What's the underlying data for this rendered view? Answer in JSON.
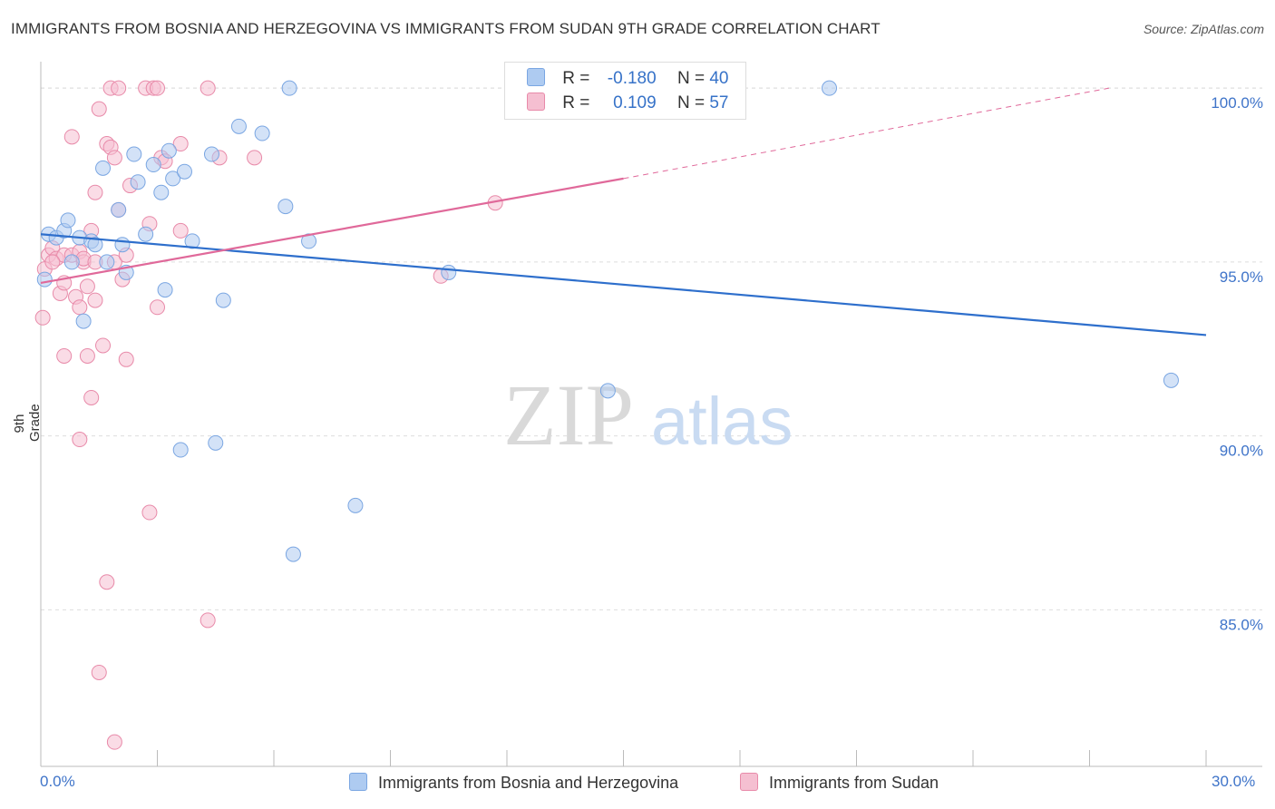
{
  "title": "IMMIGRANTS FROM BOSNIA AND HERZEGOVINA VS IMMIGRANTS FROM SUDAN 9TH GRADE CORRELATION CHART",
  "source": "Source: ZipAtlas.com",
  "watermark": {
    "zip": "ZIP",
    "atlas": "atlas"
  },
  "colors": {
    "blue_fill": "#aecbf1",
    "blue_stroke": "#7aa6e2",
    "blue_line": "#2e6fcc",
    "pink_fill": "#f5bfd1",
    "pink_stroke": "#e88aa9",
    "pink_line": "#e0699a",
    "axis_label": "#3f74c9",
    "grid": "#dddddd"
  },
  "legend": {
    "r_label": "R =",
    "n_label": "N =",
    "series1": {
      "r": "-0.180",
      "n": "40"
    },
    "series2": {
      "r": "0.109",
      "n": "57"
    }
  },
  "chart_data": {
    "type": "scatter",
    "title": "IMMIGRANTS FROM BOSNIA AND HERZEGOVINA VS IMMIGRANTS FROM SUDAN 9TH GRADE CORRELATION CHART",
    "xlabel": "",
    "ylabel": "9th Grade",
    "xlim": [
      0,
      30
    ],
    "ylim": [
      80.5,
      100.5
    ],
    "x_tick_labels": [
      "0.0%",
      "30.0%"
    ],
    "y_ticks": [
      85,
      90,
      95,
      100
    ],
    "y_tick_labels": [
      "85.0%",
      "90.0%",
      "95.0%",
      "100.0%"
    ],
    "series": [
      {
        "name": "Immigrants from Bosnia and Herzegovina",
        "color": "blue",
        "trend": {
          "x0": 0.0,
          "y0": 95.8,
          "x1": 30.0,
          "y1": 92.9,
          "dashed_from": null
        },
        "points": [
          [
            0.2,
            95.8
          ],
          [
            0.4,
            95.7
          ],
          [
            0.6,
            95.9
          ],
          [
            0.7,
            96.2
          ],
          [
            0.8,
            95.0
          ],
          [
            1.0,
            95.7
          ],
          [
            1.1,
            93.3
          ],
          [
            1.3,
            95.6
          ],
          [
            1.4,
            95.5
          ],
          [
            1.6,
            97.7
          ],
          [
            1.7,
            95.0
          ],
          [
            2.0,
            96.5
          ],
          [
            2.1,
            95.5
          ],
          [
            2.2,
            94.7
          ],
          [
            2.4,
            98.1
          ],
          [
            2.5,
            97.3
          ],
          [
            2.7,
            95.8
          ],
          [
            2.9,
            97.8
          ],
          [
            3.1,
            97.0
          ],
          [
            3.2,
            94.2
          ],
          [
            3.3,
            98.2
          ],
          [
            3.4,
            97.4
          ],
          [
            3.6,
            89.6
          ],
          [
            3.7,
            97.6
          ],
          [
            3.9,
            95.6
          ],
          [
            4.4,
            98.1
          ],
          [
            4.5,
            89.8
          ],
          [
            4.7,
            93.9
          ],
          [
            5.1,
            98.9
          ],
          [
            5.7,
            98.7
          ],
          [
            6.3,
            96.6
          ],
          [
            6.4,
            100.0
          ],
          [
            6.5,
            86.6
          ],
          [
            6.9,
            95.6
          ],
          [
            8.1,
            88.0
          ],
          [
            10.5,
            94.7
          ],
          [
            14.6,
            91.3
          ],
          [
            20.3,
            100.0
          ],
          [
            29.1,
            91.6
          ],
          [
            0.1,
            94.5
          ]
        ]
      },
      {
        "name": "Immigrants from Sudan",
        "color": "pink",
        "trend": {
          "x0": 0.0,
          "y0": 94.4,
          "x1": 15.0,
          "y1": 97.4,
          "dashed_from": 15.0,
          "dashed_to_x": 27.5,
          "dashed_to_y": 100.0
        },
        "points": [
          [
            0.05,
            93.4
          ],
          [
            0.1,
            94.8
          ],
          [
            0.2,
            95.2
          ],
          [
            0.3,
            95.4
          ],
          [
            0.4,
            95.1
          ],
          [
            0.5,
            94.1
          ],
          [
            0.6,
            95.2
          ],
          [
            0.6,
            94.4
          ],
          [
            0.6,
            92.3
          ],
          [
            0.8,
            95.2
          ],
          [
            0.8,
            98.6
          ],
          [
            0.9,
            94.0
          ],
          [
            1.0,
            95.3
          ],
          [
            1.0,
            93.7
          ],
          [
            1.0,
            89.9
          ],
          [
            1.1,
            95.0
          ],
          [
            1.1,
            95.1
          ],
          [
            1.2,
            92.3
          ],
          [
            1.2,
            94.3
          ],
          [
            1.3,
            91.1
          ],
          [
            1.4,
            95.0
          ],
          [
            1.4,
            97.0
          ],
          [
            1.4,
            93.9
          ],
          [
            1.5,
            83.2
          ],
          [
            1.5,
            99.4
          ],
          [
            1.6,
            92.6
          ],
          [
            1.7,
            98.4
          ],
          [
            1.7,
            85.8
          ],
          [
            1.8,
            98.3
          ],
          [
            1.8,
            100.0
          ],
          [
            1.9,
            95.0
          ],
          [
            1.9,
            98.0
          ],
          [
            1.9,
            81.2
          ],
          [
            2.0,
            96.5
          ],
          [
            2.0,
            100.0
          ],
          [
            2.1,
            94.5
          ],
          [
            2.2,
            95.2
          ],
          [
            2.2,
            92.2
          ],
          [
            2.3,
            97.2
          ],
          [
            2.7,
            100.0
          ],
          [
            2.8,
            96.1
          ],
          [
            2.8,
            87.8
          ],
          [
            2.9,
            100.0
          ],
          [
            3.0,
            100.0
          ],
          [
            3.0,
            93.7
          ],
          [
            3.1,
            98.0
          ],
          [
            3.2,
            97.9
          ],
          [
            3.6,
            98.4
          ],
          [
            3.6,
            95.9
          ],
          [
            4.3,
            84.7
          ],
          [
            4.3,
            100.0
          ],
          [
            4.6,
            98.0
          ],
          [
            5.5,
            98.0
          ],
          [
            11.7,
            96.7
          ],
          [
            10.3,
            94.6
          ],
          [
            1.3,
            95.9
          ],
          [
            0.3,
            95.0
          ]
        ]
      }
    ]
  }
}
